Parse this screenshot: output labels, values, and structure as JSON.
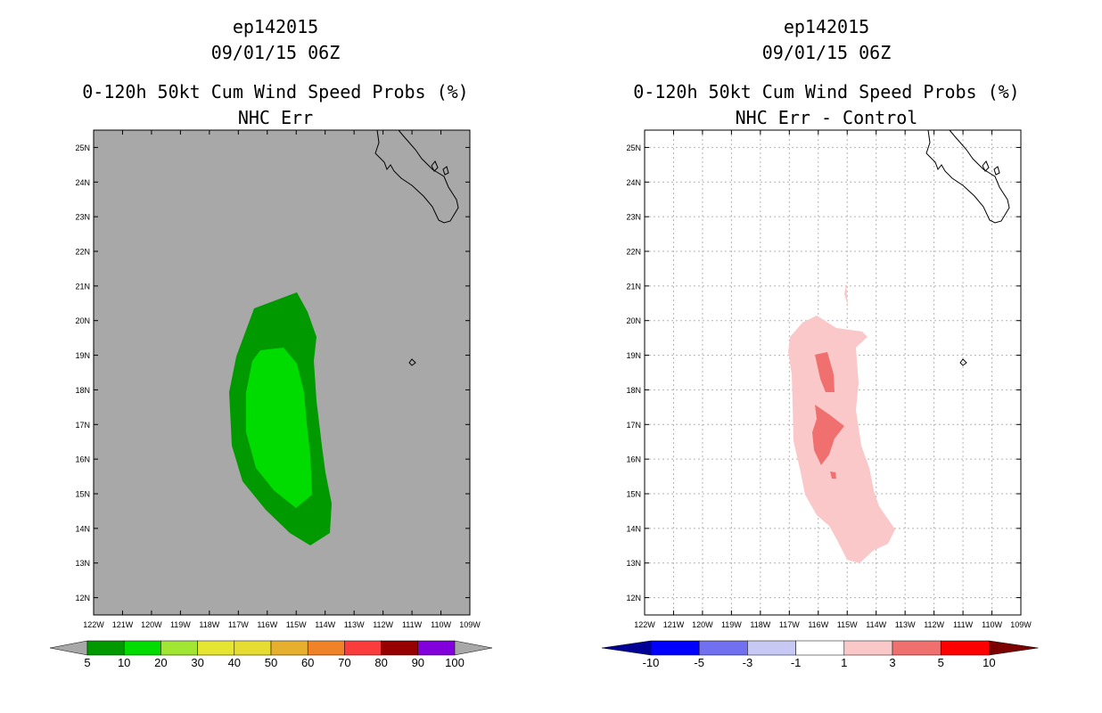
{
  "panels": [
    {
      "storm_id": "ep142015",
      "datetime": "09/01/15 06Z",
      "product": "0-120h 50kt Cum Wind Speed Probs (%)",
      "subtitle": "NHC Err",
      "colors": {
        "background": "#a8a8a8",
        "grid": "none"
      },
      "legend": {
        "colors": [
          "#009a00",
          "#00dc00",
          "#a0e632",
          "#e6e632",
          "#e6dc32",
          "#e6af2d",
          "#f08228",
          "#fa3c3c",
          "#960000",
          "#8200dc"
        ],
        "labels": [
          "5",
          "10",
          "20",
          "30",
          "40",
          "50",
          "60",
          "70",
          "80",
          "90",
          "100"
        ],
        "end_color": "#a8a8a8"
      }
    },
    {
      "storm_id": "ep142015",
      "datetime": "09/01/15 06Z",
      "product": "0-120h 50kt Cum Wind Speed Probs (%)",
      "subtitle": "NHC Err - Control",
      "colors": {
        "background": "#ffffff",
        "grid": "#b4b4b4"
      },
      "legend": {
        "colors": [
          "#0000ff",
          "#7070f0",
          "#c8c8f5",
          "#ffffff",
          "#fac8c8",
          "#f07070",
          "#ff0000"
        ],
        "labels": [
          "-10",
          "-5",
          "-3",
          "-1",
          "1",
          "3",
          "5",
          "10"
        ],
        "low_end_color": "#000096",
        "high_end_color": "#7d0000"
      }
    }
  ],
  "axes": {
    "lat_labels": [
      "25N",
      "24N",
      "23N",
      "22N",
      "21N",
      "20N",
      "19N",
      "18N",
      "17N",
      "16N",
      "15N",
      "14N",
      "13N",
      "12N"
    ],
    "lon_labels": [
      "122W",
      "121W",
      "120W",
      "119W",
      "118W",
      "117W",
      "116W",
      "115W",
      "114W",
      "113W",
      "112W",
      "111W",
      "110W",
      "109W"
    ]
  },
  "fields": {
    "prob_5_colour": "#009a00",
    "prob_10_colour": "#00dc00",
    "diff_1_colour": "#fac8c8",
    "diff_3_colour": "#f07070"
  }
}
